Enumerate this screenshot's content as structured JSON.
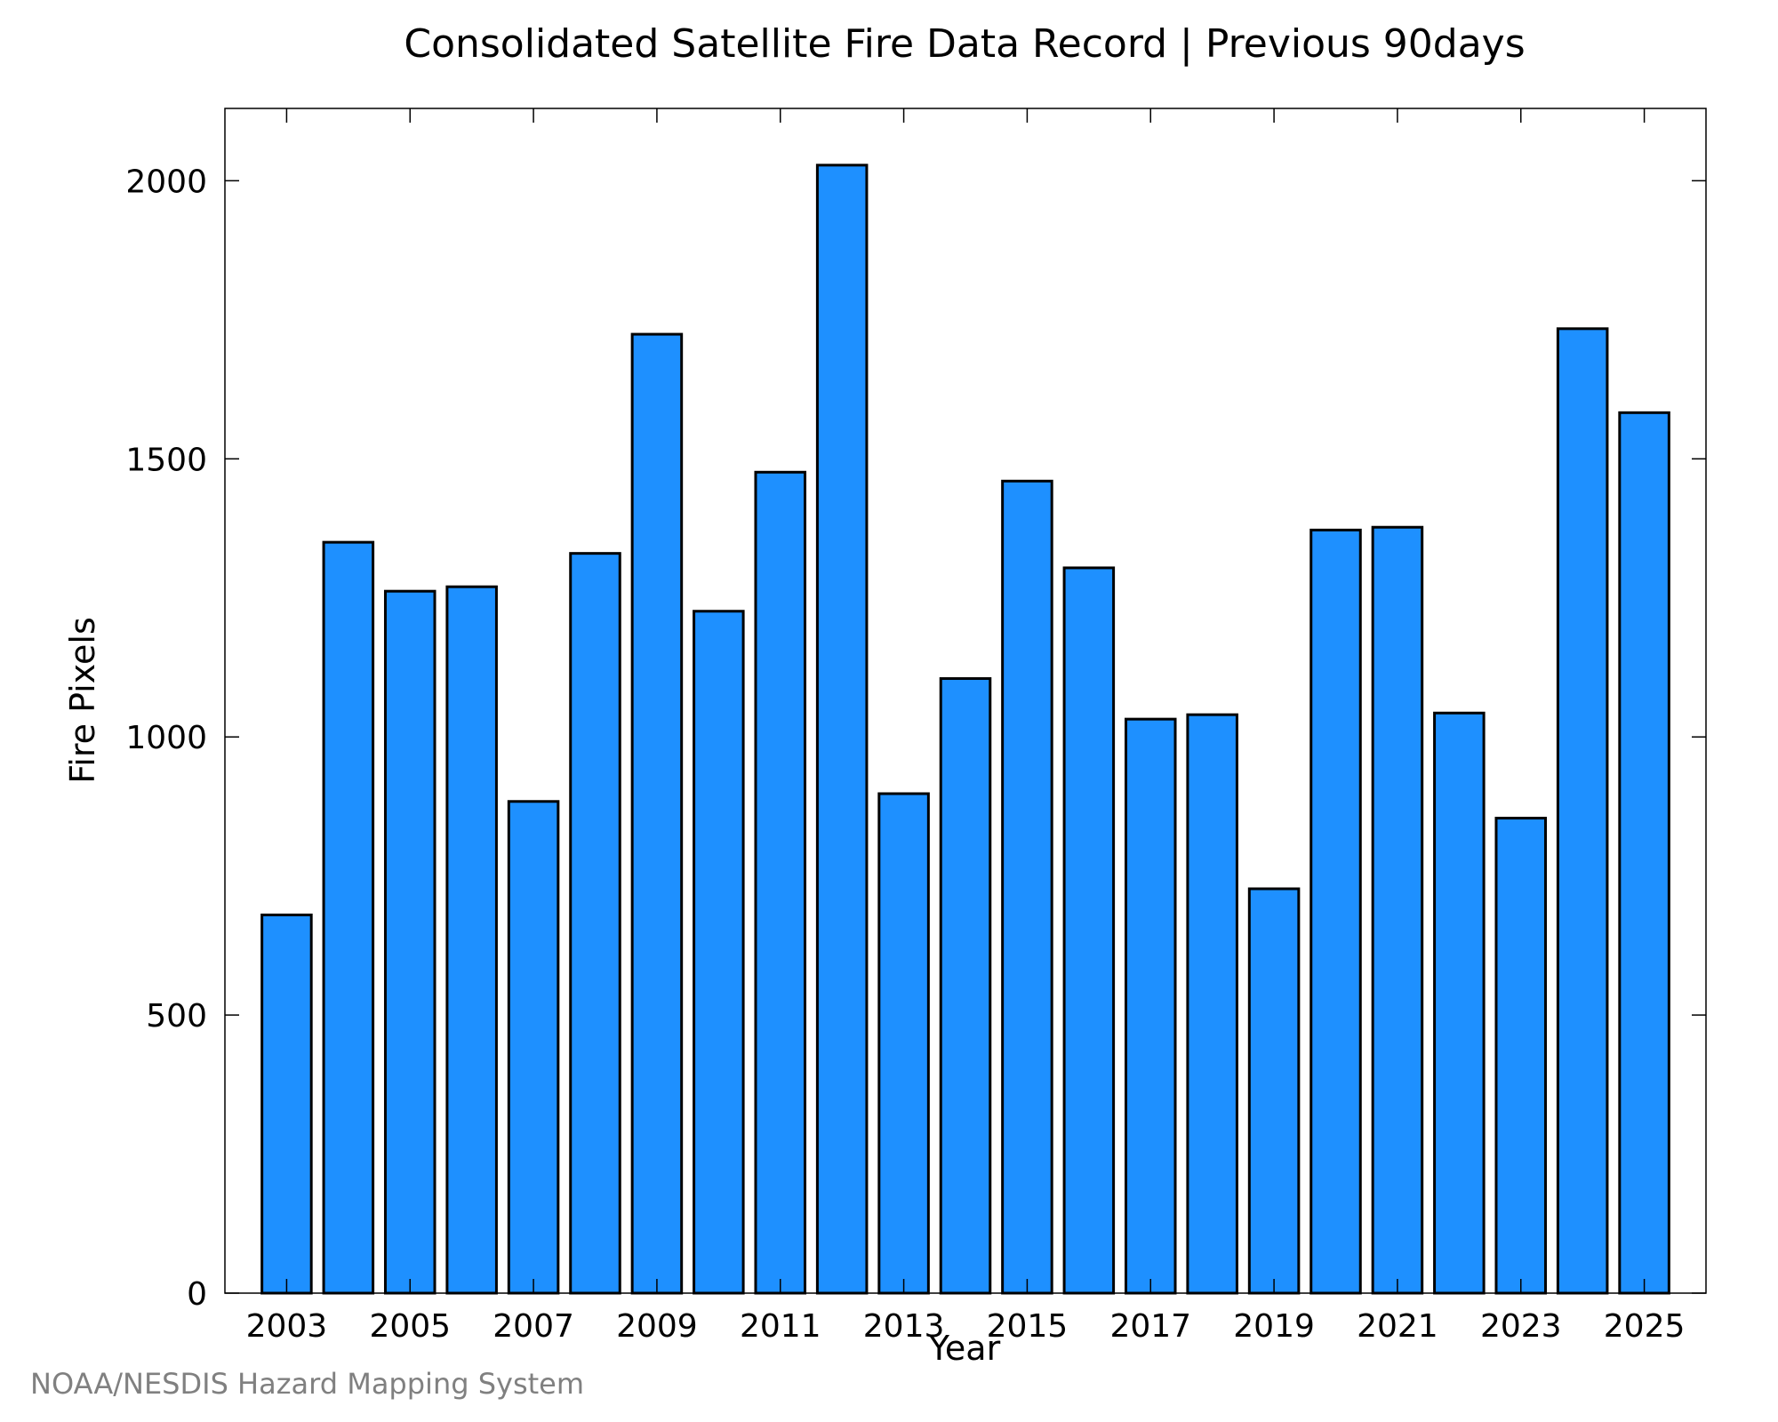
{
  "chart_data": {
    "type": "bar",
    "title": "Consolidated Satellite Fire Data Record | Previous 90days",
    "xlabel": "Year",
    "ylabel": "Fire Pixels",
    "categories": [
      "2003",
      "2004",
      "2005",
      "2006",
      "2007",
      "2008",
      "2009",
      "2010",
      "2011",
      "2012",
      "2013",
      "2014",
      "2015",
      "2016",
      "2017",
      "2018",
      "2019",
      "2020",
      "2021",
      "2022",
      "2023",
      "2024",
      "2025"
    ],
    "x_tick_labels": [
      "2003",
      "2005",
      "2007",
      "2009",
      "2011",
      "2013",
      "2015",
      "2017",
      "2019",
      "2021",
      "2023",
      "2025"
    ],
    "values": [
      680,
      1350,
      1262,
      1270,
      884,
      1330,
      1724,
      1226,
      1476,
      2028,
      898,
      1105,
      1460,
      1304,
      1032,
      1040,
      727,
      1372,
      1377,
      1043,
      854,
      1734,
      1583
    ],
    "ylim": [
      0,
      2130
    ],
    "y_ticks": [
      0,
      500,
      1000,
      1500,
      2000
    ],
    "grid": false,
    "bar_color": "#1e90ff",
    "edge_color": "#000000"
  },
  "credit": "NOAA/NESDIS Hazard Mapping System"
}
